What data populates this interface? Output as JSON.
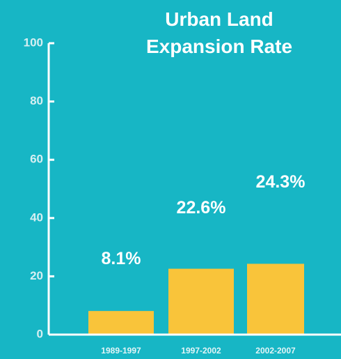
{
  "chart_data": {
    "type": "bar",
    "title": "Urban Land Expansion Rate",
    "categories": [
      "1989-1997",
      "1997-2002",
      "2002-2007"
    ],
    "values": [
      8.1,
      22.6,
      24.3
    ],
    "value_labels": [
      "8.1%",
      "22.6%",
      "24.3%"
    ],
    "color": "#f9c43a",
    "ylim": [
      0,
      100
    ],
    "yticks": [
      0,
      20,
      40,
      60,
      80,
      100
    ],
    "grid": false
  }
}
